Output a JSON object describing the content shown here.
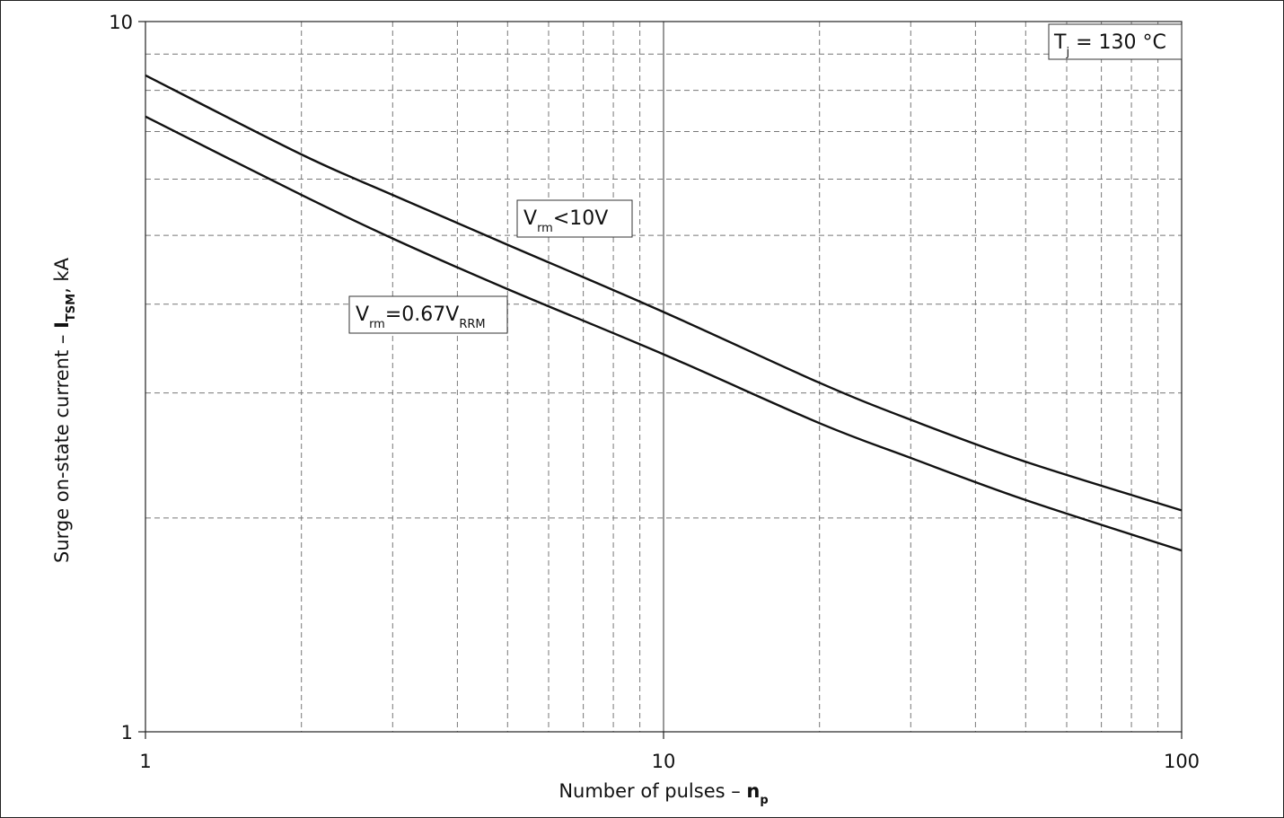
{
  "chart_data": {
    "type": "line",
    "x_scale": "log",
    "y_scale": "log",
    "xlim": [
      1,
      100
    ],
    "ylim": [
      1,
      10
    ],
    "x_ticks": [
      "1",
      "10",
      "100"
    ],
    "y_ticks": [
      "10",
      "1"
    ],
    "grid": true,
    "xlabel": {
      "text": "Number of pulses – ",
      "symbol": "n",
      "symbol_sub": "p"
    },
    "ylabel": {
      "text": "Surge on-state current – ",
      "symbol": "I",
      "symbol_sub": "TSM",
      "suffix": ", kA"
    },
    "condition": {
      "main": "T",
      "sub": "j",
      "rest": " = 130 °C"
    },
    "series": [
      {
        "label_main": "V",
        "label_sub": "rm",
        "label_rest": "<10V",
        "x": [
          1,
          2,
          3,
          5,
          10,
          20,
          30,
          50,
          100
        ],
        "y": [
          8.4,
          6.5,
          5.7,
          4.85,
          3.9,
          3.1,
          2.75,
          2.4,
          2.05
        ]
      },
      {
        "label_main": "V",
        "label_sub": "rm",
        "label_rest": "=0.67V",
        "label_sub2": "RRM",
        "x": [
          1,
          2,
          3,
          5,
          10,
          20,
          30,
          50,
          100
        ],
        "y": [
          7.35,
          5.7,
          4.95,
          4.2,
          3.4,
          2.72,
          2.43,
          2.12,
          1.8
        ]
      }
    ]
  }
}
